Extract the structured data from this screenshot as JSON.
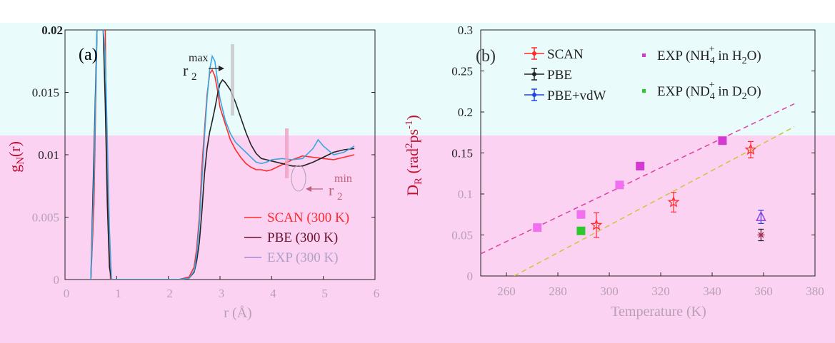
{
  "chart_data": [
    {
      "panel_label": "(a)",
      "type": "line",
      "xlabel": "r (Å)",
      "ylabel": "g_N(r)",
      "xlim": [
        0,
        6
      ],
      "ylim": [
        0,
        0.02
      ],
      "xticks": [
        "0",
        "1",
        "2",
        "3",
        "4",
        "5",
        "6"
      ],
      "yticks": [
        "0",
        "0.005",
        "0.01",
        "0.015",
        "0.02"
      ],
      "annotations": [
        {
          "text": "r2max",
          "base": "r",
          "sub": "2",
          "sup": "max"
        },
        {
          "text": "r2min",
          "base": "r",
          "sub": "2",
          "sup": "min"
        }
      ],
      "series": [
        {
          "name": "SCAN (300 K)",
          "color": "#ff2a2a",
          "x": [
            0.5,
            0.56,
            0.62,
            0.68,
            0.72,
            0.76,
            0.78,
            0.8,
            0.84,
            0.88,
            0.9,
            1.0,
            1.2,
            1.4,
            1.6,
            1.8,
            2.0,
            2.2,
            2.4,
            2.5,
            2.55,
            2.6,
            2.65,
            2.7,
            2.75,
            2.8,
            2.85,
            2.9,
            2.95,
            3.0,
            3.1,
            3.2,
            3.3,
            3.4,
            3.5,
            3.6,
            3.7,
            3.8,
            3.9,
            4.0,
            4.2,
            4.4,
            4.6,
            4.8,
            5.0,
            5.2,
            5.4,
            5.6
          ],
          "y": [
            0,
            0.006,
            0.02,
            0.02,
            0.02,
            0.02,
            0.02,
            0.012,
            0.004,
            0,
            0,
            0,
            0,
            0,
            0,
            0,
            0,
            0,
            0.0002,
            0.001,
            0.0025,
            0.005,
            0.009,
            0.012,
            0.0148,
            0.0165,
            0.0168,
            0.0163,
            0.0152,
            0.0138,
            0.0125,
            0.0112,
            0.0104,
            0.0098,
            0.0093,
            0.009,
            0.0088,
            0.0088,
            0.0087,
            0.0088,
            0.0092,
            0.0096,
            0.0099,
            0.0098,
            0.0097,
            0.0096,
            0.0098,
            0.01
          ]
        },
        {
          "name": "PBE (300 K)",
          "color": "#222222",
          "x": [
            0.5,
            0.56,
            0.62,
            0.66,
            0.7,
            0.74,
            0.78,
            0.82,
            0.86,
            0.9,
            1.0,
            1.2,
            1.4,
            1.6,
            1.8,
            2.0,
            2.2,
            2.4,
            2.5,
            2.55,
            2.6,
            2.65,
            2.7,
            2.75,
            2.8,
            2.85,
            2.9,
            2.95,
            3.0,
            3.05,
            3.1,
            3.2,
            3.3,
            3.4,
            3.5,
            3.6,
            3.7,
            3.8,
            3.9,
            4.0,
            4.2,
            4.4,
            4.6,
            4.8,
            5.0,
            5.2,
            5.4,
            5.6
          ],
          "y": [
            0,
            0.01,
            0.02,
            0.02,
            0.02,
            0.02,
            0.014,
            0.006,
            0.001,
            0,
            0,
            0,
            0,
            0,
            0,
            0,
            0,
            0.0001,
            0.0006,
            0.0015,
            0.003,
            0.0055,
            0.0085,
            0.0105,
            0.0118,
            0.0127,
            0.0137,
            0.0148,
            0.0157,
            0.016,
            0.0158,
            0.0152,
            0.0142,
            0.013,
            0.0118,
            0.0108,
            0.0101,
            0.0097,
            0.0096,
            0.0095,
            0.0093,
            0.0091,
            0.0091,
            0.0094,
            0.0098,
            0.0102,
            0.0104,
            0.0105
          ]
        },
        {
          "name": "EXP (300 K)",
          "color": "#8a5cc8",
          "x": [
            0.5,
            0.56,
            0.62,
            0.66,
            0.7,
            0.74,
            0.78,
            0.82,
            0.86,
            0.9,
            1.0,
            1.2,
            1.4,
            1.6,
            1.8,
            2.0,
            2.2,
            2.4,
            2.5,
            2.55,
            2.6,
            2.65,
            2.7,
            2.75,
            2.8,
            2.85,
            2.9,
            2.95,
            3.0,
            3.1,
            3.2,
            3.3,
            3.4,
            3.5,
            3.6,
            3.7,
            3.8,
            3.9,
            4.0,
            4.2,
            4.4,
            4.6,
            4.8,
            4.9,
            5.0,
            5.2,
            5.4,
            5.6
          ],
          "y": [
            0,
            0.008,
            0.02,
            0.02,
            0.02,
            0.02,
            0.018,
            0.011,
            0.004,
            0,
            0,
            0,
            0,
            0,
            0,
            0,
            0,
            0.0001,
            0.0007,
            0.002,
            0.0045,
            0.008,
            0.0115,
            0.0145,
            0.0168,
            0.0179,
            0.0175,
            0.016,
            0.0145,
            0.0128,
            0.0117,
            0.011,
            0.0106,
            0.0102,
            0.0098,
            0.0094,
            0.0093,
            0.0094,
            0.0096,
            0.0097,
            0.0096,
            0.0097,
            0.0105,
            0.0112,
            0.0107,
            0.01,
            0.0102,
            0.0107
          ]
        }
      ]
    },
    {
      "panel_label": "(b)",
      "type": "scatter",
      "xlabel": "Temperature (K)",
      "ylabel": "D_R (rad² ps⁻¹)",
      "xlim": [
        250,
        380
      ],
      "ylim": [
        0,
        0.3
      ],
      "xticks": [
        "260",
        "280",
        "300",
        "320",
        "340",
        "360",
        "380"
      ],
      "yticks": [
        "0",
        "0.05",
        "0.1",
        "0.15",
        "0.2",
        "0.25",
        "0.3"
      ],
      "legend": [
        {
          "label": "SCAN",
          "marker": "star-errorbar",
          "color": "#ff2a2a"
        },
        {
          "label": "PBE",
          "marker": "asterisk-errorbar",
          "color": "#222222"
        },
        {
          "label": "PBE+vdW",
          "marker": "triangle-errorbar",
          "color": "#2244dd"
        },
        {
          "label": "EXP (NH4+ in H2O)",
          "marker": "square",
          "color": "#d23ad2",
          "parts": {
            "a": "EXP (NH",
            "sub": "4",
            "sup": "+",
            "b": " in H",
            "sub2": "2",
            "c": "O)"
          }
        },
        {
          "label": "EXP (ND4+ in D2O)",
          "marker": "square",
          "color": "#2ec82e",
          "parts": {
            "a": "EXP (ND",
            "sub": "4",
            "sup": "+",
            "b": " in D",
            "sub2": "2",
            "c": "O)"
          }
        }
      ],
      "series": [
        {
          "name": "SCAN",
          "color": "#ff2a2a",
          "marker": "star",
          "x": [
            295,
            325,
            355
          ],
          "y": [
            0.062,
            0.09,
            0.154
          ],
          "yerr": [
            0.015,
            0.012,
            0.01
          ]
        },
        {
          "name": "PBE",
          "color": "#222222",
          "marker": "asterisk",
          "x": [
            359
          ],
          "y": [
            0.05
          ],
          "yerr": [
            0.007
          ]
        },
        {
          "name": "PBE+vdW",
          "color": "#2244dd",
          "marker": "triangle",
          "x": [
            359
          ],
          "y": [
            0.072
          ],
          "yerr": [
            0.008
          ]
        },
        {
          "name": "EXP (NH4+ in H2O)",
          "color": "#d23ad2",
          "marker": "square",
          "x": [
            272,
            289,
            304,
            312,
            344
          ],
          "y": [
            0.059,
            0.075,
            0.111,
            0.134,
            0.165
          ]
        },
        {
          "name": "EXP (ND4+ in D2O)",
          "color": "#2ec82e",
          "marker": "square",
          "x": [
            289
          ],
          "y": [
            0.055
          ]
        }
      ],
      "fit_lines": [
        {
          "color": "#e0409a",
          "x": [
            250,
            372
          ],
          "y": [
            0.027,
            0.21
          ]
        },
        {
          "color": "#3a7a3a",
          "x": [
            263,
            372
          ],
          "y": [
            0.0,
            0.182
          ]
        }
      ]
    }
  ]
}
